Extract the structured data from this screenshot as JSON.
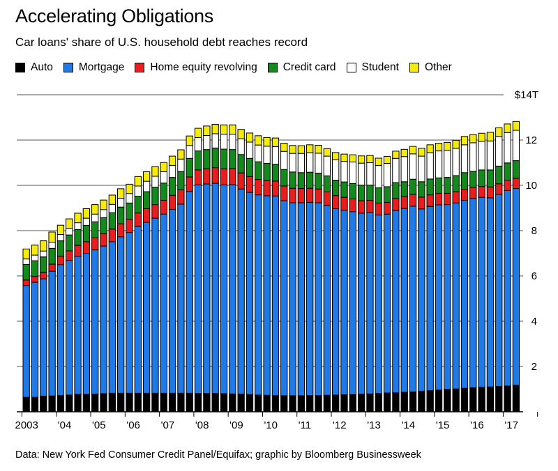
{
  "title": "Accelerating Obligations",
  "subtitle": "Car loans' share of U.S. household debt reaches record",
  "source": "Data: New York Fed Consumer Credit Panel/Equifax; graphic by Bloomberg Businessweek",
  "legend": [
    {
      "label": "Auto",
      "color": "#000000"
    },
    {
      "label": "Mortgage",
      "color": "#1f7ae8"
    },
    {
      "label": "Home equity revolving",
      "color": "#e81d1d"
    },
    {
      "label": "Credit card",
      "color": "#138a1b"
    },
    {
      "label": "Student",
      "color": "#ffffff"
    },
    {
      "label": "Other",
      "color": "#f5eb0c"
    }
  ],
  "chart_data": {
    "type": "bar",
    "stacked": true,
    "unit": "trillions of dollars",
    "ylim": [
      0,
      14
    ],
    "y_ticks": [
      {
        "value": 2,
        "label": "2"
      },
      {
        "value": 4,
        "label": "4"
      },
      {
        "value": 6,
        "label": "6"
      },
      {
        "value": 8,
        "label": "8"
      },
      {
        "value": 10,
        "label": "10"
      },
      {
        "value": 12,
        "label": "12"
      },
      {
        "value": 14,
        "label": "$14T"
      }
    ],
    "x_tick_labels": [
      "2003",
      "'04",
      "'05",
      "'06",
      "'07",
      "'08",
      "'09",
      "'10",
      "'11",
      "'12",
      "'13",
      "'14",
      "'15",
      "'16",
      "'17"
    ],
    "grid": "horizontal",
    "legend_position": "top-left",
    "categories": [
      "2003 Q1",
      "2003 Q2",
      "2003 Q3",
      "2003 Q4",
      "2004 Q1",
      "2004 Q2",
      "2004 Q3",
      "2004 Q4",
      "2005 Q1",
      "2005 Q2",
      "2005 Q3",
      "2005 Q4",
      "2006 Q1",
      "2006 Q2",
      "2006 Q3",
      "2006 Q4",
      "2007 Q1",
      "2007 Q2",
      "2007 Q3",
      "2007 Q4",
      "2008 Q1",
      "2008 Q2",
      "2008 Q3",
      "2008 Q4",
      "2009 Q1",
      "2009 Q2",
      "2009 Q3",
      "2009 Q4",
      "2010 Q1",
      "2010 Q2",
      "2010 Q3",
      "2010 Q4",
      "2011 Q1",
      "2011 Q2",
      "2011 Q3",
      "2011 Q4",
      "2012 Q1",
      "2012 Q2",
      "2012 Q3",
      "2012 Q4",
      "2013 Q1",
      "2013 Q2",
      "2013 Q3",
      "2013 Q4",
      "2014 Q1",
      "2014 Q2",
      "2014 Q3",
      "2014 Q4",
      "2015 Q1",
      "2015 Q2",
      "2015 Q3",
      "2015 Q4",
      "2016 Q1",
      "2016 Q2",
      "2016 Q3",
      "2016 Q4",
      "2017 Q1",
      "2017 Q2"
    ],
    "series": [
      {
        "name": "Auto",
        "values": [
          0.64,
          0.64,
          0.69,
          0.7,
          0.72,
          0.74,
          0.77,
          0.77,
          0.78,
          0.8,
          0.82,
          0.82,
          0.82,
          0.82,
          0.82,
          0.82,
          0.82,
          0.82,
          0.82,
          0.82,
          0.81,
          0.81,
          0.81,
          0.8,
          0.79,
          0.78,
          0.76,
          0.74,
          0.73,
          0.72,
          0.71,
          0.71,
          0.71,
          0.72,
          0.72,
          0.73,
          0.74,
          0.75,
          0.76,
          0.78,
          0.79,
          0.81,
          0.83,
          0.84,
          0.86,
          0.88,
          0.91,
          0.93,
          0.96,
          0.99,
          1.01,
          1.04,
          1.06,
          1.08,
          1.1,
          1.12,
          1.14,
          1.17
        ]
      },
      {
        "name": "Mortgage",
        "values": [
          4.94,
          5.08,
          5.18,
          5.51,
          5.78,
          5.94,
          6.1,
          6.23,
          6.37,
          6.52,
          6.69,
          6.91,
          7.1,
          7.37,
          7.55,
          7.73,
          7.91,
          8.12,
          8.35,
          8.91,
          9.21,
          9.25,
          9.28,
          9.22,
          9.24,
          9.06,
          8.93,
          8.84,
          8.81,
          8.81,
          8.61,
          8.52,
          8.52,
          8.53,
          8.51,
          8.38,
          8.23,
          8.15,
          8.08,
          7.99,
          8.01,
          7.88,
          7.9,
          8.05,
          8.12,
          8.2,
          8.05,
          8.14,
          8.18,
          8.16,
          8.21,
          8.3,
          8.36,
          8.39,
          8.35,
          8.48,
          8.63,
          8.69
        ]
      },
      {
        "name": "Home equity revolving",
        "values": [
          0.24,
          0.26,
          0.28,
          0.31,
          0.37,
          0.43,
          0.48,
          0.51,
          0.53,
          0.54,
          0.56,
          0.57,
          0.58,
          0.59,
          0.6,
          0.6,
          0.61,
          0.62,
          0.63,
          0.64,
          0.66,
          0.67,
          0.69,
          0.71,
          0.71,
          0.71,
          0.7,
          0.68,
          0.67,
          0.66,
          0.65,
          0.64,
          0.63,
          0.62,
          0.61,
          0.6,
          0.58,
          0.57,
          0.56,
          0.55,
          0.54,
          0.53,
          0.52,
          0.53,
          0.52,
          0.52,
          0.52,
          0.51,
          0.51,
          0.5,
          0.5,
          0.49,
          0.49,
          0.48,
          0.48,
          0.47,
          0.46,
          0.45
        ]
      },
      {
        "name": "Credit card",
        "values": [
          0.69,
          0.69,
          0.69,
          0.7,
          0.68,
          0.7,
          0.7,
          0.72,
          0.71,
          0.71,
          0.72,
          0.74,
          0.72,
          0.74,
          0.75,
          0.77,
          0.76,
          0.79,
          0.81,
          0.82,
          0.84,
          0.85,
          0.87,
          0.87,
          0.84,
          0.81,
          0.8,
          0.78,
          0.76,
          0.74,
          0.73,
          0.72,
          0.7,
          0.71,
          0.7,
          0.71,
          0.68,
          0.68,
          0.68,
          0.69,
          0.67,
          0.67,
          0.69,
          0.7,
          0.66,
          0.67,
          0.68,
          0.7,
          0.68,
          0.7,
          0.71,
          0.73,
          0.71,
          0.73,
          0.75,
          0.78,
          0.76,
          0.78
        ]
      },
      {
        "name": "Student",
        "values": [
          0.24,
          0.25,
          0.26,
          0.27,
          0.28,
          0.29,
          0.3,
          0.32,
          0.34,
          0.36,
          0.37,
          0.39,
          0.42,
          0.45,
          0.46,
          0.48,
          0.5,
          0.53,
          0.55,
          0.57,
          0.59,
          0.62,
          0.63,
          0.66,
          0.68,
          0.7,
          0.72,
          0.74,
          0.76,
          0.78,
          0.8,
          0.82,
          0.85,
          0.86,
          0.88,
          0.87,
          0.9,
          0.91,
          0.95,
          0.97,
          0.99,
          0.99,
          1.03,
          1.07,
          1.11,
          1.12,
          1.13,
          1.16,
          1.19,
          1.19,
          1.2,
          1.23,
          1.26,
          1.26,
          1.28,
          1.31,
          1.34,
          1.34
        ]
      },
      {
        "name": "Other",
        "values": [
          0.44,
          0.44,
          0.45,
          0.45,
          0.41,
          0.42,
          0.42,
          0.42,
          0.42,
          0.42,
          0.41,
          0.42,
          0.41,
          0.42,
          0.42,
          0.43,
          0.41,
          0.41,
          0.41,
          0.42,
          0.41,
          0.42,
          0.41,
          0.41,
          0.41,
          0.41,
          0.4,
          0.41,
          0.38,
          0.38,
          0.36,
          0.35,
          0.34,
          0.35,
          0.35,
          0.33,
          0.32,
          0.32,
          0.32,
          0.32,
          0.32,
          0.32,
          0.31,
          0.32,
          0.32,
          0.33,
          0.35,
          0.35,
          0.34,
          0.35,
          0.36,
          0.37,
          0.36,
          0.36,
          0.38,
          0.38,
          0.38,
          0.39
        ]
      }
    ]
  }
}
